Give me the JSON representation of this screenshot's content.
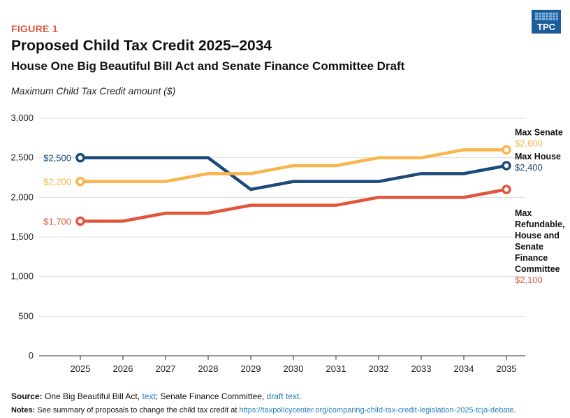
{
  "figure_label": "FIGURE 1",
  "logo_text": "TPC",
  "chart_data": {
    "type": "line",
    "title": "Proposed Child Tax Credit 2025–2034",
    "subtitle": "House One Big Beautiful Bill Act and Senate Finance Committee Draft",
    "ylabel": "Maximum Child Tax Credit amount ($)",
    "xlabel": "",
    "ylim": [
      0,
      3000
    ],
    "yticks": [
      0,
      500,
      1000,
      1500,
      2000,
      2500,
      3000
    ],
    "ytick_labels": [
      "0",
      "500",
      "1,000",
      "1,500",
      "2,000",
      "2,500",
      "3,000"
    ],
    "categories": [
      "2025",
      "2026",
      "2027",
      "2028",
      "2029",
      "2030",
      "2031",
      "2032",
      "2033",
      "2034",
      "2035"
    ],
    "grid": true,
    "series": [
      {
        "name": "Max House",
        "color": "#1b4b7a",
        "values": [
          2500,
          2500,
          2500,
          2500,
          2100,
          2200,
          2200,
          2200,
          2300,
          2300,
          2400
        ],
        "start_label": "$2,500",
        "end_label": "$2,400",
        "label_lines": [
          "Max House"
        ]
      },
      {
        "name": "Max Senate",
        "color": "#f9b44c",
        "values": [
          2200,
          2200,
          2200,
          2300,
          2300,
          2400,
          2400,
          2500,
          2500,
          2600,
          2600
        ],
        "start_label": "$2,200",
        "end_label": "$2,600",
        "label_lines": [
          "Max Senate"
        ]
      },
      {
        "name": "Max Refundable, House and Senate Finance Committee",
        "color": "#e1553a",
        "values": [
          1700,
          1700,
          1800,
          1800,
          1900,
          1900,
          1900,
          2000,
          2000,
          2000,
          2100
        ],
        "start_label": "$1,700",
        "end_label": "$2,100",
        "label_lines": [
          "Max",
          "Refundable,",
          "House and",
          "Senate",
          "Finance",
          "Committee"
        ]
      }
    ]
  },
  "footer": {
    "source_label": "Source:",
    "source_text": " One Big Beautiful Bill Act, ",
    "source_link1": "text",
    "source_mid": "; Senate Finance Committee, ",
    "source_link2": "draft text",
    "source_end": ".",
    "notes_label": "Notes:",
    "notes_text": " See summary of proposals to change the child tax credit at ",
    "notes_link": "https://taxpolicycenter.org/comparing-child-tax-credit-legislation-2025-tcja-debate",
    "notes_end": "."
  }
}
